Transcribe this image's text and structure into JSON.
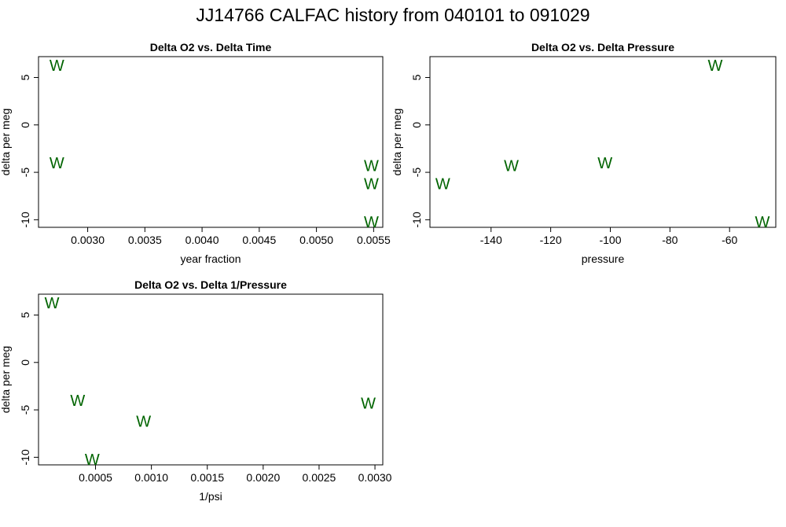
{
  "title": "JJ14766   CALFAC history from  040101  to  091029",
  "colors": {
    "marker": "#006400",
    "frame": "#000000",
    "text": "#000000"
  },
  "chart_data": [
    {
      "type": "scatter",
      "title": "Delta O2 vs. Delta Time",
      "xlabel": "year fraction",
      "ylabel": "delta per meg",
      "marker": "W",
      "xlim": [
        0.00257,
        0.00558
      ],
      "ylim": [
        -10.8,
        7.2
      ],
      "xticks": [
        0.003,
        0.0035,
        0.004,
        0.0045,
        0.005,
        0.0055
      ],
      "xtick_labels": [
        "0.0030",
        "0.0035",
        "0.0040",
        "0.0045",
        "0.0050",
        "0.0055"
      ],
      "yticks": [
        5,
        0,
        -5,
        -10
      ],
      "ytick_labels": [
        "5",
        "0",
        "-5",
        "-10"
      ],
      "x": [
        0.00273,
        0.00273,
        0.00548,
        0.00548,
        0.00548
      ],
      "y": [
        6.3,
        -4.0,
        -4.3,
        -6.2,
        -10.2
      ]
    },
    {
      "type": "scatter",
      "title": "Delta O2 vs. Delta Pressure",
      "xlabel": "pressure",
      "ylabel": "delta per meg",
      "marker": "W",
      "xlim": [
        -160.5,
        -44.5
      ],
      "ylim": [
        -10.8,
        7.2
      ],
      "xticks": [
        -140,
        -120,
        -100,
        -80,
        -60
      ],
      "xtick_labels": [
        "-140",
        "-120",
        "-100",
        "-80",
        "-60"
      ],
      "yticks": [
        5,
        0,
        -5,
        -10
      ],
      "ytick_labels": [
        "5",
        "0",
        "-5",
        "-10"
      ],
      "x": [
        -156.2,
        -133.2,
        -101.8,
        -64.8,
        -49.0
      ],
      "y": [
        -6.2,
        -4.3,
        -4.0,
        6.3,
        -10.2
      ]
    },
    {
      "type": "scatter",
      "title": "Delta O2 vs. Delta 1/Pressure",
      "xlabel": "1/psi",
      "ylabel": "delta per meg",
      "marker": "W",
      "xlim": [
        -1e-05,
        0.00307
      ],
      "ylim": [
        -10.8,
        7.2
      ],
      "xticks": [
        0.0005,
        0.001,
        0.0015,
        0.002,
        0.0025,
        0.003
      ],
      "xtick_labels": [
        "0.0005",
        "0.0010",
        "0.0015",
        "0.0020",
        "0.0025",
        "0.0030"
      ],
      "yticks": [
        5,
        0,
        -5,
        -10
      ],
      "ytick_labels": [
        "5",
        "0",
        "-5",
        "-10"
      ],
      "x": [
        0.00011,
        0.00034,
        0.00047,
        0.00093,
        0.00294
      ],
      "y": [
        6.3,
        -4.0,
        -10.2,
        -6.2,
        -4.3
      ]
    }
  ]
}
